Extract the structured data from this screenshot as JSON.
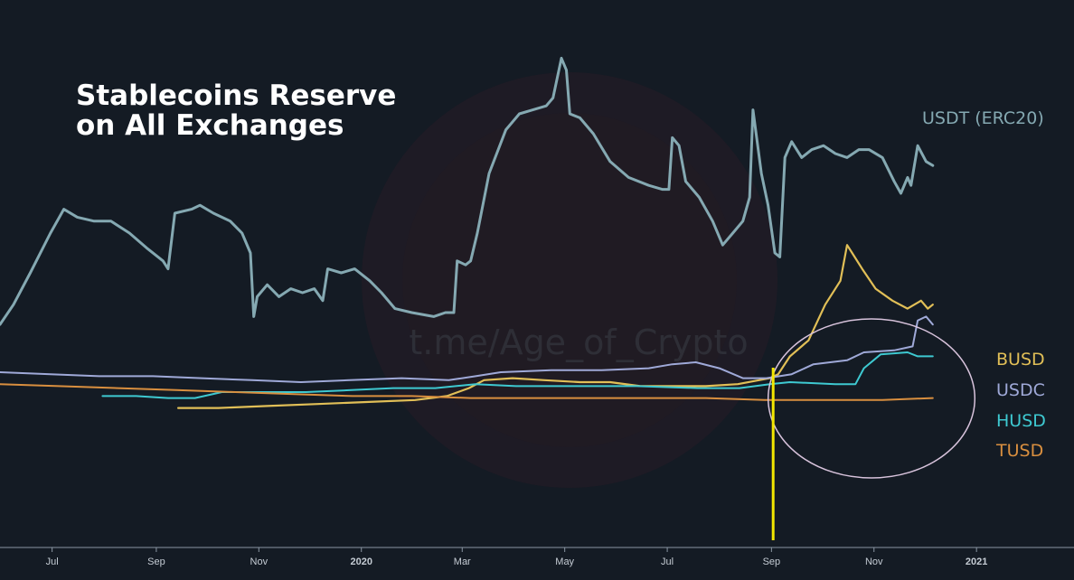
{
  "title": {
    "line1": "Stablecoins Reserve",
    "line2": "on All Exchanges"
  },
  "watermark": "t.me/Age_of_Crypto",
  "colors": {
    "background": "#141b24",
    "highlight_line": "#f2e600",
    "highlight_ellipse": "#d8c3dc",
    "axis": "#8a96a3"
  },
  "chart_data": {
    "type": "line",
    "title": "Stablecoins Reserve on All Exchanges",
    "x_axis": {
      "type": "date",
      "range": [
        "2019-05-31",
        "2021-02-28"
      ],
      "ticks": [
        {
          "date": "2019-07-01",
          "label": "Jul",
          "bold": false
        },
        {
          "date": "2019-09-01",
          "label": "Sep",
          "bold": false
        },
        {
          "date": "2019-11-01",
          "label": "Nov",
          "bold": false
        },
        {
          "date": "2020-01-01",
          "label": "2020",
          "bold": true
        },
        {
          "date": "2020-03-01",
          "label": "Mar",
          "bold": false
        },
        {
          "date": "2020-05-01",
          "label": "May",
          "bold": false
        },
        {
          "date": "2020-07-01",
          "label": "Jul",
          "bold": false
        },
        {
          "date": "2020-09-01",
          "label": "Sep",
          "bold": false
        },
        {
          "date": "2020-11-01",
          "label": "Nov",
          "bold": false
        },
        {
          "date": "2021-01-01",
          "label": "2021",
          "bold": true
        }
      ]
    },
    "y_axis": {
      "labeled": false,
      "range": [
        0,
        100
      ]
    },
    "grid": false,
    "legend": "right",
    "highlight": {
      "date": "2020-09-02",
      "ellipse_dates": [
        "2020-08-30",
        "2020-12-31"
      ]
    },
    "series": [
      {
        "name": "USDT (ERC20)",
        "color": "#85a9b2",
        "stroke_width": 3,
        "points": [
          [
            "2019-05-31",
            32
          ],
          [
            "2019-06-08",
            37
          ],
          [
            "2019-06-18",
            45
          ],
          [
            "2019-06-30",
            55
          ],
          [
            "2019-07-08",
            61
          ],
          [
            "2019-07-16",
            59
          ],
          [
            "2019-07-26",
            58
          ],
          [
            "2019-08-05",
            58
          ],
          [
            "2019-08-16",
            55
          ],
          [
            "2019-08-27",
            51
          ],
          [
            "2019-09-05",
            48
          ],
          [
            "2019-09-08",
            46
          ],
          [
            "2019-09-12",
            60
          ],
          [
            "2019-09-22",
            61
          ],
          [
            "2019-09-27",
            62
          ],
          [
            "2019-10-05",
            60
          ],
          [
            "2019-10-15",
            58
          ],
          [
            "2019-10-22",
            55
          ],
          [
            "2019-10-27",
            50
          ],
          [
            "2019-10-29",
            34
          ],
          [
            "2019-10-31",
            39
          ],
          [
            "2019-11-06",
            42
          ],
          [
            "2019-11-13",
            39
          ],
          [
            "2019-11-20",
            41
          ],
          [
            "2019-11-27",
            40
          ],
          [
            "2019-12-04",
            41
          ],
          [
            "2019-12-09",
            38
          ],
          [
            "2019-12-12",
            46
          ],
          [
            "2019-12-20",
            45
          ],
          [
            "2019-12-28",
            46
          ],
          [
            "2020-01-06",
            43
          ],
          [
            "2020-01-13",
            40
          ],
          [
            "2020-01-21",
            36
          ],
          [
            "2020-01-31",
            35
          ],
          [
            "2020-02-13",
            34
          ],
          [
            "2020-02-20",
            35
          ],
          [
            "2020-02-25",
            35
          ],
          [
            "2020-02-27",
            48
          ],
          [
            "2020-03-03",
            47
          ],
          [
            "2020-03-06",
            48
          ],
          [
            "2020-03-10",
            55
          ],
          [
            "2020-03-17",
            70
          ],
          [
            "2020-03-27",
            81
          ],
          [
            "2020-04-04",
            85
          ],
          [
            "2020-04-12",
            86
          ],
          [
            "2020-04-20",
            87
          ],
          [
            "2020-04-24",
            89
          ],
          [
            "2020-04-29",
            99
          ],
          [
            "2020-05-02",
            96
          ],
          [
            "2020-05-04",
            85
          ],
          [
            "2020-05-10",
            84
          ],
          [
            "2020-05-18",
            80
          ],
          [
            "2020-05-28",
            73
          ],
          [
            "2020-06-08",
            69
          ],
          [
            "2020-06-20",
            67
          ],
          [
            "2020-06-28",
            66
          ],
          [
            "2020-07-02",
            66
          ],
          [
            "2020-07-04",
            79
          ],
          [
            "2020-07-08",
            77
          ],
          [
            "2020-07-12",
            68
          ],
          [
            "2020-07-20",
            64
          ],
          [
            "2020-07-28",
            58
          ],
          [
            "2020-08-03",
            52
          ],
          [
            "2020-08-09",
            55
          ],
          [
            "2020-08-15",
            58
          ],
          [
            "2020-08-19",
            64
          ],
          [
            "2020-08-21",
            86
          ],
          [
            "2020-08-26",
            70
          ],
          [
            "2020-08-30",
            62
          ],
          [
            "2020-09-03",
            50
          ],
          [
            "2020-09-06",
            49
          ],
          [
            "2020-09-09",
            74
          ],
          [
            "2020-09-13",
            78
          ],
          [
            "2020-09-19",
            74
          ],
          [
            "2020-09-25",
            76
          ],
          [
            "2020-10-02",
            77
          ],
          [
            "2020-10-09",
            75
          ],
          [
            "2020-10-16",
            74
          ],
          [
            "2020-10-23",
            76
          ],
          [
            "2020-10-29",
            76
          ],
          [
            "2020-11-06",
            74
          ],
          [
            "2020-11-13",
            68
          ],
          [
            "2020-11-17",
            65
          ],
          [
            "2020-11-21",
            69
          ],
          [
            "2020-11-23",
            67
          ],
          [
            "2020-11-27",
            77
          ],
          [
            "2020-12-02",
            73
          ],
          [
            "2020-12-06",
            72
          ]
        ]
      },
      {
        "name": "BUSD",
        "color": "#e1bf57",
        "stroke_width": 2.2,
        "points": [
          [
            "2019-09-14",
            11
          ],
          [
            "2019-10-08",
            11
          ],
          [
            "2019-11-06",
            11.5
          ],
          [
            "2019-12-06",
            12
          ],
          [
            "2020-01-04",
            12.5
          ],
          [
            "2020-02-02",
            13
          ],
          [
            "2020-02-21",
            14
          ],
          [
            "2020-03-05",
            16
          ],
          [
            "2020-03-14",
            18
          ],
          [
            "2020-03-31",
            18.5
          ],
          [
            "2020-04-19",
            18
          ],
          [
            "2020-05-10",
            17.5
          ],
          [
            "2020-05-28",
            17.5
          ],
          [
            "2020-06-15",
            16.5
          ],
          [
            "2020-07-05",
            16.5
          ],
          [
            "2020-07-24",
            16.5
          ],
          [
            "2020-08-12",
            17
          ],
          [
            "2020-08-31",
            18.5
          ],
          [
            "2020-09-05",
            19.5
          ],
          [
            "2020-09-12",
            24
          ],
          [
            "2020-09-23",
            28
          ],
          [
            "2020-10-03",
            37
          ],
          [
            "2020-10-12",
            43
          ],
          [
            "2020-10-16",
            52
          ],
          [
            "2020-10-19",
            50
          ],
          [
            "2020-10-25",
            46
          ],
          [
            "2020-11-02",
            41
          ],
          [
            "2020-11-12",
            38
          ],
          [
            "2020-11-21",
            36
          ],
          [
            "2020-11-29",
            38
          ],
          [
            "2020-12-03",
            36
          ],
          [
            "2020-12-06",
            37
          ]
        ]
      },
      {
        "name": "USDC",
        "color": "#9fa9d8",
        "stroke_width": 2,
        "points": [
          [
            "2019-05-31",
            20
          ],
          [
            "2019-06-30",
            19.5
          ],
          [
            "2019-07-29",
            19
          ],
          [
            "2019-08-30",
            19
          ],
          [
            "2019-09-28",
            18.5
          ],
          [
            "2019-10-28",
            18
          ],
          [
            "2019-11-26",
            17.5
          ],
          [
            "2019-12-25",
            18
          ],
          [
            "2020-01-25",
            18.5
          ],
          [
            "2020-02-22",
            18
          ],
          [
            "2020-03-09",
            19
          ],
          [
            "2020-03-24",
            20
          ],
          [
            "2020-04-23",
            20.5
          ],
          [
            "2020-05-23",
            20.5
          ],
          [
            "2020-06-20",
            21
          ],
          [
            "2020-07-04",
            22
          ],
          [
            "2020-07-18",
            22.5
          ],
          [
            "2020-08-01",
            21
          ],
          [
            "2020-08-15",
            18.5
          ],
          [
            "2020-08-29",
            18.5
          ],
          [
            "2020-09-13",
            19.5
          ],
          [
            "2020-09-26",
            22
          ],
          [
            "2020-10-16",
            23
          ],
          [
            "2020-10-26",
            25
          ],
          [
            "2020-11-13",
            25.5
          ],
          [
            "2020-11-24",
            26.5
          ],
          [
            "2020-11-27",
            33
          ],
          [
            "2020-12-02",
            34
          ],
          [
            "2020-12-06",
            32
          ]
        ]
      },
      {
        "name": "HUSD",
        "color": "#3ec9d1",
        "stroke_width": 2,
        "points": [
          [
            "2019-07-31",
            14
          ],
          [
            "2019-08-20",
            14
          ],
          [
            "2019-09-08",
            13.5
          ],
          [
            "2019-09-24",
            13.5
          ],
          [
            "2019-10-10",
            15
          ],
          [
            "2019-11-04",
            15
          ],
          [
            "2019-11-29",
            15
          ],
          [
            "2019-12-26",
            15.5
          ],
          [
            "2020-01-20",
            16
          ],
          [
            "2020-02-14",
            16
          ],
          [
            "2020-03-09",
            17
          ],
          [
            "2020-04-02",
            16.5
          ],
          [
            "2020-05-08",
            16.5
          ],
          [
            "2020-06-13",
            16.5
          ],
          [
            "2020-07-19",
            16
          ],
          [
            "2020-08-13",
            16
          ],
          [
            "2020-08-31",
            17
          ],
          [
            "2020-09-12",
            17.5
          ],
          [
            "2020-10-09",
            17
          ],
          [
            "2020-10-21",
            17
          ],
          [
            "2020-10-26",
            21
          ],
          [
            "2020-11-05",
            24.5
          ],
          [
            "2020-11-21",
            25
          ],
          [
            "2020-11-27",
            24
          ],
          [
            "2020-12-06",
            24
          ]
        ]
      },
      {
        "name": "TUSD",
        "color": "#d98f3f",
        "stroke_width": 2,
        "points": [
          [
            "2019-05-31",
            17
          ],
          [
            "2019-07-05",
            16.5
          ],
          [
            "2019-08-09",
            16
          ],
          [
            "2019-09-13",
            15.5
          ],
          [
            "2019-10-18",
            15
          ],
          [
            "2019-11-22",
            14.5
          ],
          [
            "2019-12-27",
            14
          ],
          [
            "2020-01-31",
            14
          ],
          [
            "2020-03-06",
            13.5
          ],
          [
            "2020-04-10",
            13.5
          ],
          [
            "2020-05-15",
            13.5
          ],
          [
            "2020-06-19",
            13.5
          ],
          [
            "2020-07-24",
            13.5
          ],
          [
            "2020-08-28",
            13
          ],
          [
            "2020-10-02",
            13
          ],
          [
            "2020-11-06",
            13
          ],
          [
            "2020-12-06",
            13.5
          ]
        ]
      }
    ]
  }
}
